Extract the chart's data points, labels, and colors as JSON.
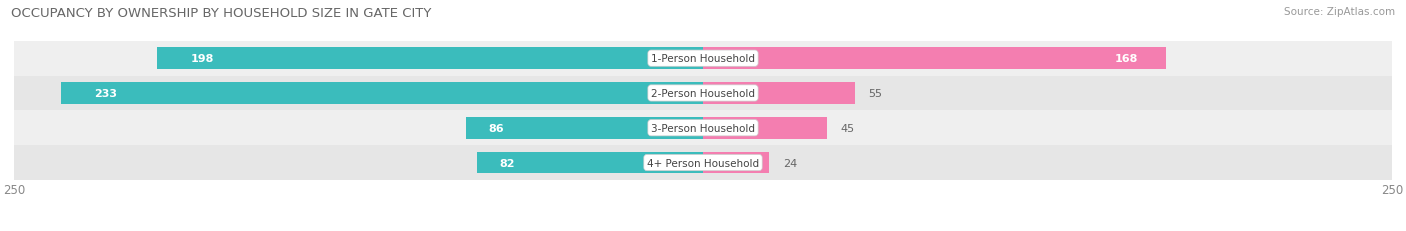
{
  "title": "OCCUPANCY BY OWNERSHIP BY HOUSEHOLD SIZE IN GATE CITY",
  "source": "Source: ZipAtlas.com",
  "categories": [
    "1-Person Household",
    "2-Person Household",
    "3-Person Household",
    "4+ Person Household"
  ],
  "owner_values": [
    198,
    233,
    86,
    82
  ],
  "renter_values": [
    168,
    55,
    45,
    24
  ],
  "max_value": 250,
  "owner_color": "#3BBCBC",
  "renter_color": "#F47EB0",
  "row_bg_even": "#EFEFEF",
  "row_bg_odd": "#E6E6E6",
  "label_bg_color": "#FFFFFF",
  "title_fontsize": 9.5,
  "source_fontsize": 7.5,
  "tick_fontsize": 8.5,
  "label_fontsize": 7.5,
  "value_fontsize": 8.0,
  "legend_fontsize": 8.5,
  "axis_label_left": "250",
  "axis_label_right": "250",
  "bar_height": 0.62,
  "background_color": "#FFFFFF"
}
